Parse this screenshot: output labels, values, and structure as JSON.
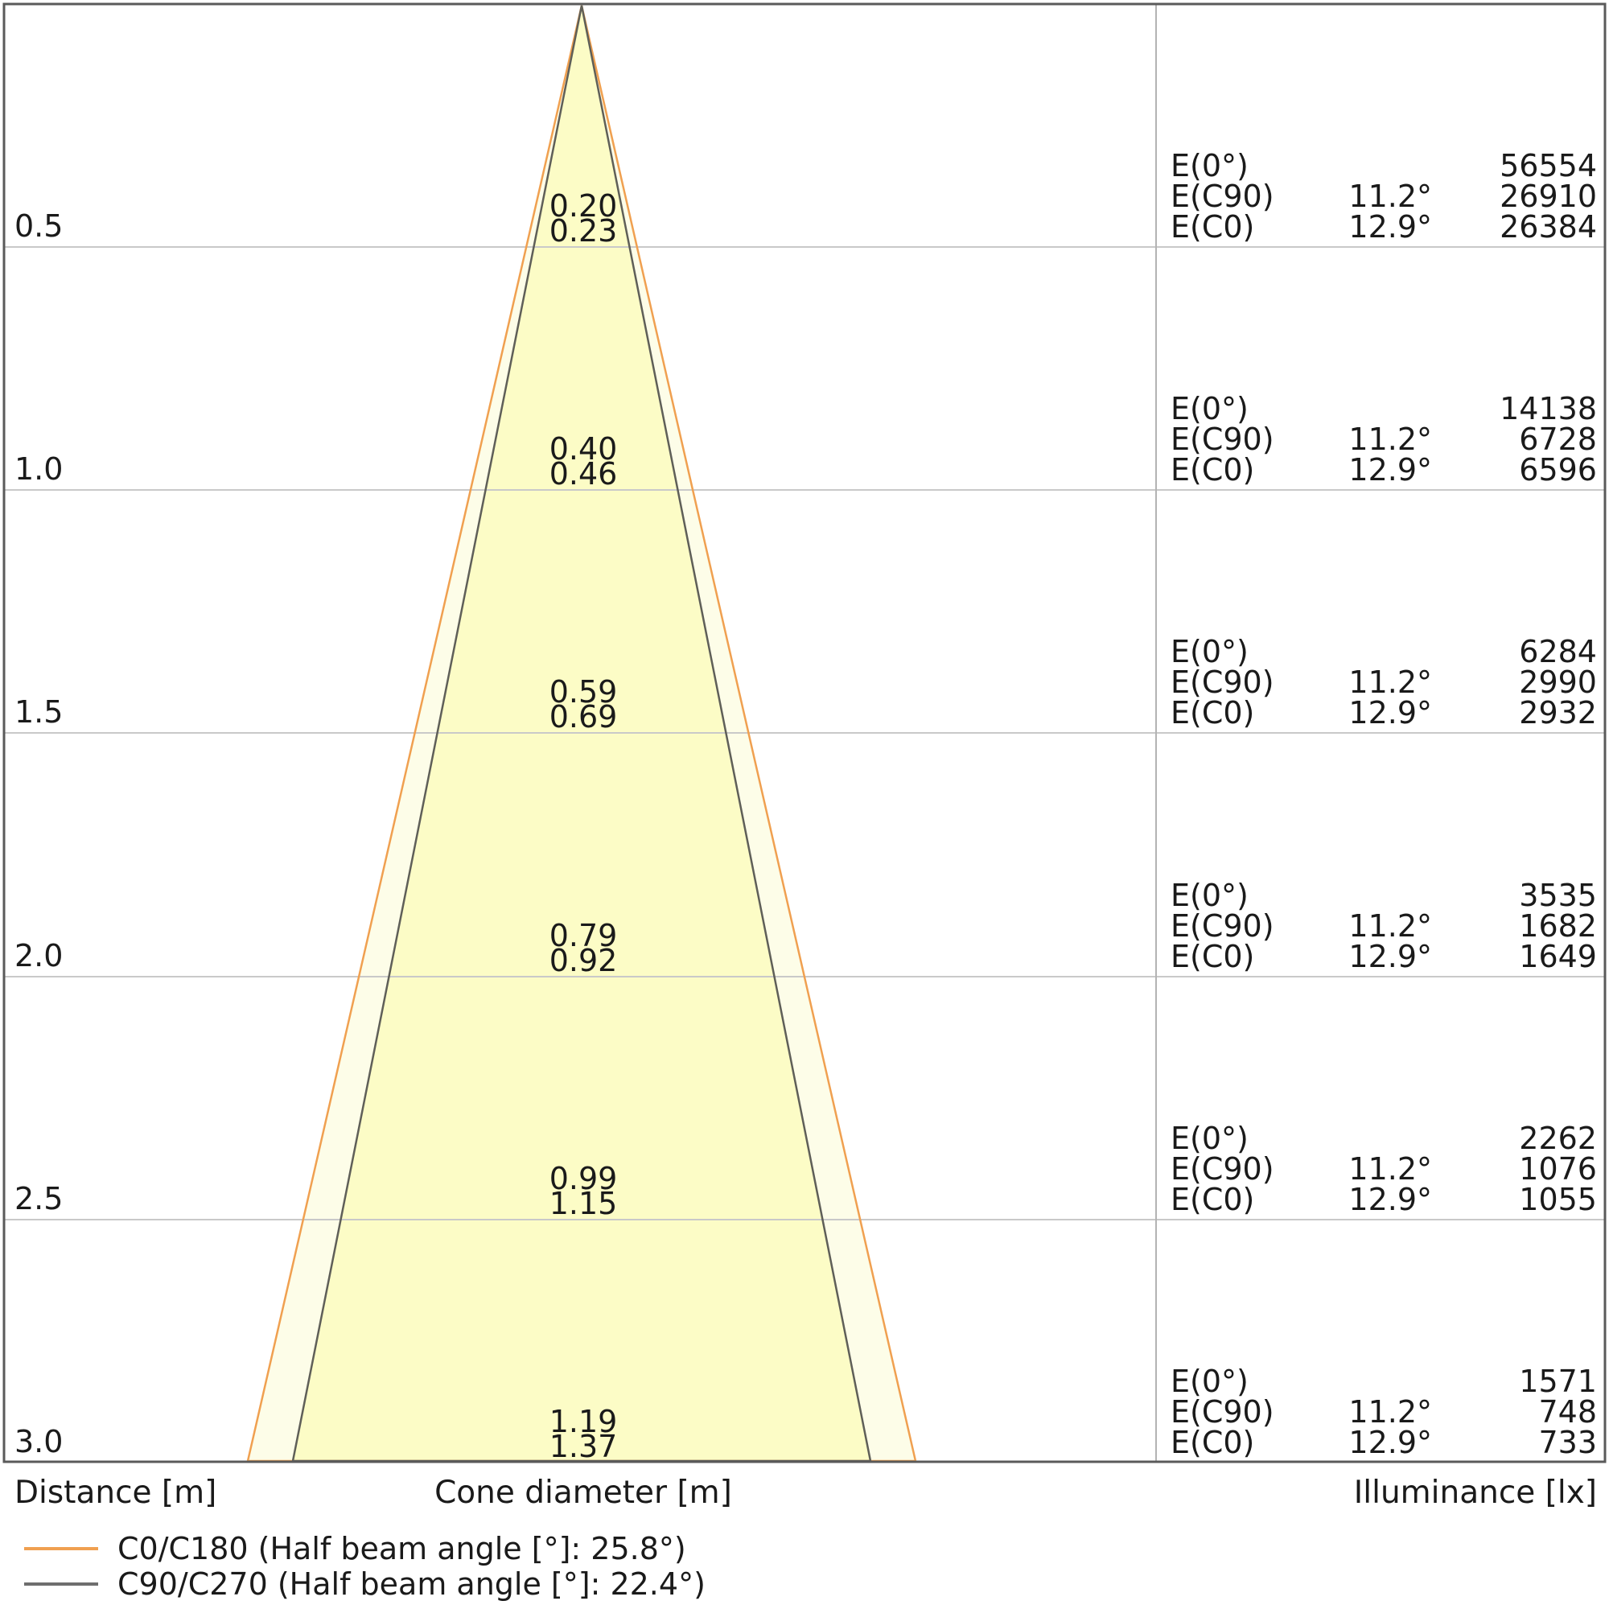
{
  "colors": {
    "cone_fill_outer": "#FDFDE8",
    "cone_fill_inner": "#FCFCC6",
    "c0_line": "#F0A050",
    "c90_line": "#5F5F58",
    "gridline": "#C9C9C9",
    "border": "#5A5A5A",
    "divider": "#B3B3B3"
  },
  "axis": {
    "distance_label": "Distance [m]",
    "cone_label": "Cone diameter [m]",
    "illuminance_label": "Illuminance [lx]"
  },
  "legend": {
    "items": [
      {
        "label": "C0/C180 (Half beam angle [°]: 25.8°)",
        "color": "#F0A050"
      },
      {
        "label": "C90/C270 (Half beam angle [°]: 22.4°)",
        "color": "#6E6E6E"
      }
    ]
  },
  "rows": [
    {
      "distance": "0.5",
      "cone": [
        "0.20",
        "0.23"
      ],
      "e": [
        {
          "label": "E(0°)",
          "angle": "",
          "value": "56554"
        },
        {
          "label": "E(C90)",
          "angle": "11.2°",
          "value": "26910"
        },
        {
          "label": "E(C0)",
          "angle": "12.9°",
          "value": "26384"
        }
      ]
    },
    {
      "distance": "1.0",
      "cone": [
        "0.40",
        "0.46"
      ],
      "e": [
        {
          "label": "E(0°)",
          "angle": "",
          "value": "14138"
        },
        {
          "label": "E(C90)",
          "angle": "11.2°",
          "value": "6728"
        },
        {
          "label": "E(C0)",
          "angle": "12.9°",
          "value": "6596"
        }
      ]
    },
    {
      "distance": "1.5",
      "cone": [
        "0.59",
        "0.69"
      ],
      "e": [
        {
          "label": "E(0°)",
          "angle": "",
          "value": "6284"
        },
        {
          "label": "E(C90)",
          "angle": "11.2°",
          "value": "2990"
        },
        {
          "label": "E(C0)",
          "angle": "12.9°",
          "value": "2932"
        }
      ]
    },
    {
      "distance": "2.0",
      "cone": [
        "0.79",
        "0.92"
      ],
      "e": [
        {
          "label": "E(0°)",
          "angle": "",
          "value": "3535"
        },
        {
          "label": "E(C90)",
          "angle": "11.2°",
          "value": "1682"
        },
        {
          "label": "E(C0)",
          "angle": "12.9°",
          "value": "1649"
        }
      ]
    },
    {
      "distance": "2.5",
      "cone": [
        "0.99",
        "1.15"
      ],
      "e": [
        {
          "label": "E(0°)",
          "angle": "",
          "value": "2262"
        },
        {
          "label": "E(C90)",
          "angle": "11.2°",
          "value": "1076"
        },
        {
          "label": "E(C0)",
          "angle": "12.9°",
          "value": "1055"
        }
      ]
    },
    {
      "distance": "3.0",
      "cone": [
        "1.19",
        "1.37"
      ],
      "e": [
        {
          "label": "E(0°)",
          "angle": "",
          "value": "1571"
        },
        {
          "label": "E(C90)",
          "angle": "11.2°",
          "value": "748"
        },
        {
          "label": "E(C0)",
          "angle": "12.9°",
          "value": "733"
        }
      ]
    }
  ],
  "chart_data": {
    "type": "area",
    "title": "Light cone diagram (cone diameter and illuminance vs distance)",
    "xlabel": "Distance [m]",
    "ylabel_center": "Cone diameter [m]",
    "ylabel_right": "Illuminance [lx]",
    "x": [
      0.5,
      1.0,
      1.5,
      2.0,
      2.5,
      3.0
    ],
    "xlim": [
      0,
      3.0
    ],
    "grid": true,
    "legend_position": "bottom-left",
    "series": [
      {
        "name": "C0/C180 (Half beam angle [°]: 25.8°)",
        "half_beam_angle_deg": 25.8,
        "cone_diameter_m": [
          0.23,
          0.46,
          0.69,
          0.92,
          1.15,
          1.37
        ],
        "illuminance_label": "E(C0)",
        "angle_deg": 12.9,
        "illuminance_lx": [
          26384,
          6596,
          2932,
          1649,
          1055,
          733
        ],
        "color": "#F0A050"
      },
      {
        "name": "C90/C270 (Half beam angle [°]: 22.4°)",
        "half_beam_angle_deg": 22.4,
        "cone_diameter_m": [
          0.2,
          0.4,
          0.59,
          0.79,
          0.99,
          1.19
        ],
        "illuminance_label": "E(C90)",
        "angle_deg": 11.2,
        "illuminance_lx": [
          26910,
          6728,
          2990,
          1682,
          1076,
          748
        ],
        "color": "#6E6E6E"
      },
      {
        "name": "E(0°)",
        "illuminance_lx": [
          56554,
          14138,
          6284,
          3535,
          2262,
          1571
        ]
      }
    ]
  }
}
